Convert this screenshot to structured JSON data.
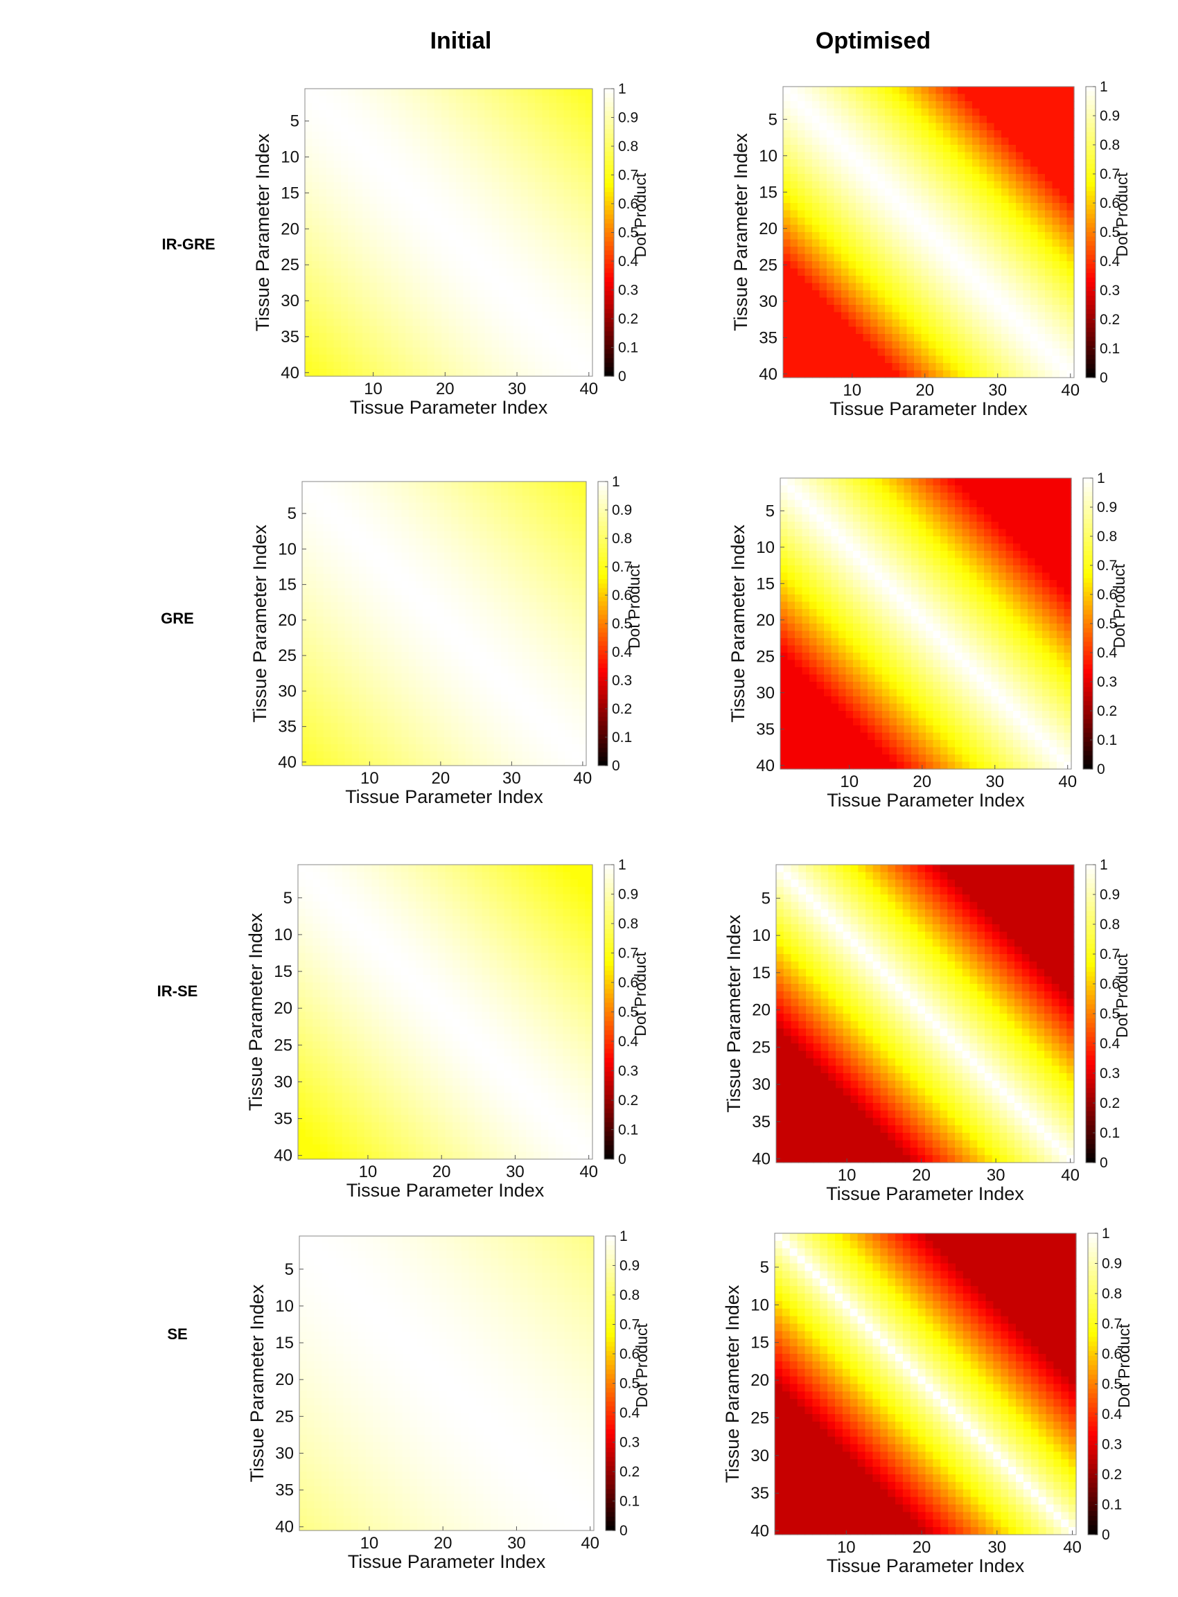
{
  "column_titles": [
    "Initial",
    "Optimised"
  ],
  "row_labels": [
    "IR-GRE",
    "GRE",
    "IR-SE",
    "SE"
  ],
  "colormap": "hot",
  "colormap_stops": [
    "#000000",
    "#ff0000",
    "#ffff00",
    "#ffffff"
  ],
  "chart_data": [
    {
      "type": "heatmap",
      "sequence": "IR-GRE",
      "variant": "Initial",
      "xlabel": "Tissue Parameter Index",
      "ylabel": "Tissue Parameter Index",
      "xticks": [
        10,
        20,
        30,
        40
      ],
      "yticks": [
        5,
        10,
        15,
        20,
        25,
        30,
        35,
        40
      ],
      "xlim": [
        1,
        40
      ],
      "ylim": [
        1,
        40
      ],
      "colorbar": {
        "label": "Dot Product",
        "ticks": [
          "0",
          "0.1",
          "0.2",
          "0.3",
          "0.4",
          "0.5",
          "0.6",
          "0.7",
          "0.8",
          "0.9",
          "1"
        ],
        "range": [
          0,
          1
        ]
      },
      "model": {
        "floor": 0.72,
        "wid": 38,
        "pow": 1.5
      }
    },
    {
      "type": "heatmap",
      "sequence": "IR-GRE",
      "variant": "Optimised",
      "xlabel": "Tissue Parameter Index",
      "ylabel": "Tissue Parameter Index",
      "xticks": [
        10,
        20,
        30,
        40
      ],
      "yticks": [
        5,
        10,
        15,
        20,
        25,
        30,
        35,
        40
      ],
      "xlim": [
        1,
        40
      ],
      "ylim": [
        1,
        40
      ],
      "colorbar": {
        "label": "Dot Product",
        "ticks": [
          "0",
          "0.1",
          "0.2",
          "0.3",
          "0.4",
          "0.5",
          "0.6",
          "0.7",
          "0.8",
          "0.9",
          "1"
        ],
        "range": [
          0,
          1
        ]
      },
      "model": {
        "floor": 0.36,
        "wid": 24,
        "pow": 1.3
      }
    },
    {
      "type": "heatmap",
      "sequence": "GRE",
      "variant": "Initial",
      "xlabel": "Tissue Parameter Index",
      "ylabel": "Tissue Parameter Index",
      "xticks": [
        10,
        20,
        30,
        40
      ],
      "yticks": [
        5,
        10,
        15,
        20,
        25,
        30,
        35,
        40
      ],
      "xlim": [
        1,
        40
      ],
      "ylim": [
        1,
        40
      ],
      "colorbar": {
        "label": "Dot Product",
        "ticks": [
          "0",
          "0.1",
          "0.2",
          "0.3",
          "0.4",
          "0.5",
          "0.6",
          "0.7",
          "0.8",
          "0.9",
          "1"
        ],
        "range": [
          0,
          1
        ]
      },
      "model": {
        "floor": 0.74,
        "wid": 38,
        "pow": 1.4
      }
    },
    {
      "type": "heatmap",
      "sequence": "GRE",
      "variant": "Optimised",
      "xlabel": "Tissue Parameter Index",
      "ylabel": "Tissue Parameter Index",
      "xticks": [
        10,
        20,
        30,
        40
      ],
      "yticks": [
        5,
        10,
        15,
        20,
        25,
        30,
        35,
        40
      ],
      "xlim": [
        1,
        40
      ],
      "ylim": [
        1,
        40
      ],
      "colorbar": {
        "label": "Dot Product",
        "ticks": [
          "0",
          "0.1",
          "0.2",
          "0.3",
          "0.4",
          "0.5",
          "0.6",
          "0.7",
          "0.8",
          "0.9",
          "1"
        ],
        "range": [
          0,
          1
        ]
      },
      "model": {
        "floor": 0.32,
        "wid": 24,
        "pow": 1.1
      }
    },
    {
      "type": "heatmap",
      "sequence": "IR-SE",
      "variant": "Initial",
      "xlabel": "Tissue Parameter Index",
      "ylabel": "Tissue Parameter Index",
      "xticks": [
        10,
        20,
        30,
        40
      ],
      "yticks": [
        5,
        10,
        15,
        20,
        25,
        30,
        35,
        40
      ],
      "xlim": [
        1,
        40
      ],
      "ylim": [
        1,
        40
      ],
      "colorbar": {
        "label": "Dot Product",
        "ticks": [
          "0",
          "0.1",
          "0.2",
          "0.3",
          "0.4",
          "0.5",
          "0.6",
          "0.7",
          "0.8",
          "0.9",
          "1"
        ],
        "range": [
          0,
          1
        ]
      },
      "model": {
        "floor": 0.68,
        "wid": 36,
        "pow": 1.4
      }
    },
    {
      "type": "heatmap",
      "sequence": "IR-SE",
      "variant": "Optimised",
      "xlabel": "Tissue Parameter Index",
      "ylabel": "Tissue Parameter Index",
      "xticks": [
        10,
        20,
        30,
        40
      ],
      "yticks": [
        5,
        10,
        15,
        20,
        25,
        30,
        35,
        40
      ],
      "xlim": [
        1,
        40
      ],
      "ylim": [
        1,
        40
      ],
      "colorbar": {
        "label": "Dot Product",
        "ticks": [
          "0",
          "0.1",
          "0.2",
          "0.3",
          "0.4",
          "0.5",
          "0.6",
          "0.7",
          "0.8",
          "0.9",
          "1"
        ],
        "range": [
          0,
          1
        ]
      },
      "model": {
        "floor": 0.26,
        "wid": 22,
        "pow": 1.0
      }
    },
    {
      "type": "heatmap",
      "sequence": "SE",
      "variant": "Initial",
      "xlabel": "Tissue Parameter Index",
      "ylabel": "Tissue Parameter Index",
      "xticks": [
        10,
        20,
        30,
        40
      ],
      "yticks": [
        5,
        10,
        15,
        20,
        25,
        30,
        35,
        40
      ],
      "xlim": [
        1,
        40
      ],
      "ylim": [
        1,
        40
      ],
      "colorbar": {
        "label": "Dot Product",
        "ticks": [
          "0",
          "0.1",
          "0.2",
          "0.3",
          "0.4",
          "0.5",
          "0.6",
          "0.7",
          "0.8",
          "0.9",
          "1"
        ],
        "range": [
          0,
          1
        ]
      },
      "model": {
        "floor": 0.84,
        "wid": 40,
        "pow": 1.6
      }
    },
    {
      "type": "heatmap",
      "sequence": "SE",
      "variant": "Optimised",
      "xlabel": "Tissue Parameter Index",
      "ylabel": "Tissue Parameter Index",
      "xticks": [
        10,
        20,
        30,
        40
      ],
      "yticks": [
        5,
        10,
        15,
        20,
        25,
        30,
        35,
        40
      ],
      "xlim": [
        1,
        40
      ],
      "ylim": [
        1,
        40
      ],
      "colorbar": {
        "label": "Dot Product",
        "ticks": [
          "0",
          "0.1",
          "0.2",
          "0.3",
          "0.4",
          "0.5",
          "0.6",
          "0.7",
          "0.8",
          "0.9",
          "1"
        ],
        "range": [
          0,
          1
        ]
      },
      "model": {
        "floor": 0.26,
        "wid": 20,
        "pow": 0.85
      }
    }
  ]
}
